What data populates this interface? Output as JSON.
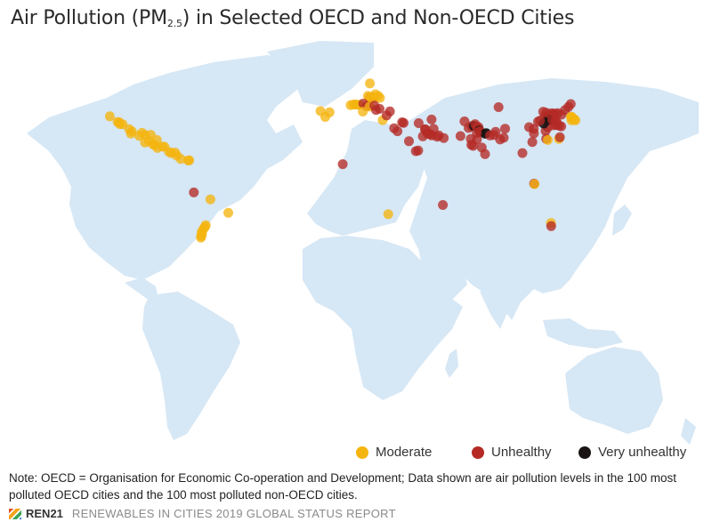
{
  "title": {
    "prefix": "Air Pollution (PM",
    "subscript": "2.5",
    "suffix": ") in Selected OECD and Non-OECD Cities"
  },
  "colors": {
    "land": "#d6e7f5",
    "moderate": "#f5b50f",
    "unhealthy": "#b52a25",
    "very_unhealthy": "#1b1414"
  },
  "legend": [
    {
      "label": "Moderate",
      "category": "moderate"
    },
    {
      "label": "Unhealthy",
      "category": "unhealthy"
    },
    {
      "label": "Very unhealthy",
      "category": "very_unhealthy"
    }
  ],
  "note": "Note: OECD = Organisation for Economic Co-operation and Development; Data shown are air pollution levels in the 100 most polluted OECD cities and the 100 most polluted non-OECD cities.",
  "footer": {
    "logo": "REN21",
    "report": "RENEWABLES IN CITIES 2019 GLOBAL STATUS REPORT"
  },
  "cities": [
    {
      "lon": -122.4,
      "lat": 37.8,
      "c": "moderate"
    },
    {
      "lon": -118.2,
      "lat": 34.1,
      "c": "moderate"
    },
    {
      "lon": -117.3,
      "lat": 33.9,
      "c": "moderate"
    },
    {
      "lon": -116.9,
      "lat": 32.7,
      "c": "moderate"
    },
    {
      "lon": -115.5,
      "lat": 32.6,
      "c": "moderate"
    },
    {
      "lon": -112.0,
      "lat": 29.5,
      "c": "moderate"
    },
    {
      "lon": -110.5,
      "lat": 28.0,
      "c": "moderate"
    },
    {
      "lon": -111.0,
      "lat": 26.5,
      "c": "moderate"
    },
    {
      "lon": -106.5,
      "lat": 25.0,
      "c": "moderate"
    },
    {
      "lon": -105.0,
      "lat": 27.0,
      "c": "moderate"
    },
    {
      "lon": -103.3,
      "lat": 25.5,
      "c": "moderate"
    },
    {
      "lon": -103.4,
      "lat": 20.7,
      "c": "moderate"
    },
    {
      "lon": -101.2,
      "lat": 21.5,
      "c": "moderate"
    },
    {
      "lon": -100.3,
      "lat": 25.7,
      "c": "moderate"
    },
    {
      "lon": -99.1,
      "lat": 19.4,
      "c": "moderate"
    },
    {
      "lon": -98.2,
      "lat": 19.0,
      "c": "moderate"
    },
    {
      "lon": -97.0,
      "lat": 22.3,
      "c": "moderate"
    },
    {
      "lon": -96.7,
      "lat": 17.1,
      "c": "moderate"
    },
    {
      "lon": -94.0,
      "lat": 18.0,
      "c": "moderate"
    },
    {
      "lon": -92.9,
      "lat": 17.9,
      "c": "moderate"
    },
    {
      "lon": -90.5,
      "lat": 14.6,
      "c": "moderate"
    },
    {
      "lon": -89.2,
      "lat": 13.7,
      "c": "moderate"
    },
    {
      "lon": -87.2,
      "lat": 14.1,
      "c": "moderate"
    },
    {
      "lon": -86.2,
      "lat": 12.1,
      "c": "moderate"
    },
    {
      "lon": -84.1,
      "lat": 9.9,
      "c": "moderate"
    },
    {
      "lon": -80.0,
      "lat": 8.9,
      "c": "moderate"
    },
    {
      "lon": -79.5,
      "lat": 9.0,
      "c": "moderate"
    },
    {
      "lon": -77.0,
      "lat": -12.0,
      "c": "unhealthy"
    },
    {
      "lon": -68.1,
      "lat": -16.5,
      "c": "moderate"
    },
    {
      "lon": -58.4,
      "lat": -25.3,
      "c": "moderate"
    },
    {
      "lon": -70.6,
      "lat": -33.4,
      "c": "moderate"
    },
    {
      "lon": -71.0,
      "lat": -34.5,
      "c": "moderate"
    },
    {
      "lon": -71.6,
      "lat": -35.4,
      "c": "moderate"
    },
    {
      "lon": -72.7,
      "lat": -37.5,
      "c": "moderate"
    },
    {
      "lon": -72.6,
      "lat": -38.7,
      "c": "moderate"
    },
    {
      "lon": -73.0,
      "lat": -39.8,
      "c": "moderate"
    },
    {
      "lon": -72.9,
      "lat": -40.5,
      "c": "moderate"
    },
    {
      "lon": -73.2,
      "lat": -41.5,
      "c": "moderate"
    },
    {
      "lon": 18.1,
      "lat": 59.3,
      "c": "moderate"
    },
    {
      "lon": 18.0,
      "lat": 50.0,
      "c": "unhealthy"
    },
    {
      "lon": 19.0,
      "lat": 50.2,
      "c": "moderate"
    },
    {
      "lon": 18.7,
      "lat": 50.3,
      "c": "moderate"
    },
    {
      "lon": 19.9,
      "lat": 50.1,
      "c": "unhealthy"
    },
    {
      "lon": 20.6,
      "lat": 49.8,
      "c": "moderate"
    },
    {
      "lon": 18.3,
      "lat": 49.4,
      "c": "moderate"
    },
    {
      "lon": 21.0,
      "lat": 52.2,
      "c": "moderate"
    },
    {
      "lon": 22.5,
      "lat": 51.2,
      "c": "moderate"
    },
    {
      "lon": 17.0,
      "lat": 51.1,
      "c": "moderate"
    },
    {
      "lon": 23.5,
      "lat": 49.8,
      "c": "moderate"
    },
    {
      "lon": 9.2,
      "lat": 45.5,
      "c": "moderate"
    },
    {
      "lon": 10.2,
      "lat": 45.5,
      "c": "moderate"
    },
    {
      "lon": 11.3,
      "lat": 45.4,
      "c": "moderate"
    },
    {
      "lon": 12.3,
      "lat": 45.4,
      "c": "moderate"
    },
    {
      "lon": 7.7,
      "lat": 45.1,
      "c": "moderate"
    },
    {
      "lon": 14.5,
      "lat": 46.1,
      "c": "unhealthy"
    },
    {
      "lon": 16.4,
      "lat": 44.5,
      "c": "unhealthy"
    },
    {
      "lon": 17.9,
      "lat": 44.2,
      "c": "moderate"
    },
    {
      "lon": 20.5,
      "lat": 44.8,
      "c": "unhealthy"
    },
    {
      "lon": 21.4,
      "lat": 42.0,
      "c": "unhealthy"
    },
    {
      "lon": 23.3,
      "lat": 42.7,
      "c": "unhealthy"
    },
    {
      "lon": 28.9,
      "lat": 41.0,
      "c": "unhealthy"
    },
    {
      "lon": 14.3,
      "lat": 40.9,
      "c": "moderate"
    },
    {
      "lon": -3.7,
      "lat": 40.4,
      "c": "moderate"
    },
    {
      "lon": -6.0,
      "lat": 37.4,
      "c": "moderate"
    },
    {
      "lon": -8.6,
      "lat": 41.2,
      "c": "moderate"
    },
    {
      "lon": 25.0,
      "lat": 35.3,
      "c": "moderate"
    },
    {
      "lon": 27.1,
      "lat": 38.4,
      "c": "unhealthy"
    },
    {
      "lon": 31.2,
      "lat": 30.0,
      "c": "unhealthy"
    },
    {
      "lon": 33.0,
      "lat": 28.0,
      "c": "unhealthy"
    },
    {
      "lon": 35.5,
      "lat": 33.9,
      "c": "unhealthy"
    },
    {
      "lon": 36.3,
      "lat": 33.5,
      "c": "unhealthy"
    },
    {
      "lon": 39.2,
      "lat": 21.5,
      "c": "unhealthy"
    },
    {
      "lon": 44.4,
      "lat": 33.3,
      "c": "unhealthy"
    },
    {
      "lon": 46.7,
      "lat": 24.7,
      "c": "unhealthy"
    },
    {
      "lon": 47.9,
      "lat": 29.4,
      "c": "unhealthy"
    },
    {
      "lon": 49.2,
      "lat": 26.4,
      "c": "unhealthy"
    },
    {
      "lon": 50.6,
      "lat": 26.2,
      "c": "unhealthy"
    },
    {
      "lon": 51.4,
      "lat": 35.7,
      "c": "unhealthy"
    },
    {
      "lon": 51.5,
      "lat": 25.3,
      "c": "unhealthy"
    },
    {
      "lon": 54.4,
      "lat": 24.5,
      "c": "unhealthy"
    },
    {
      "lon": 55.3,
      "lat": 25.3,
      "c": "unhealthy"
    },
    {
      "lon": 52.5,
      "lat": 29.6,
      "c": "unhealthy"
    },
    {
      "lon": 58.0,
      "lat": 23.6,
      "c": "unhealthy"
    },
    {
      "lon": 44.2,
      "lat": 15.4,
      "c": "unhealthy"
    },
    {
      "lon": 42.9,
      "lat": 15.0,
      "c": "unhealthy"
    },
    {
      "lon": 48.0,
      "lat": 29.0,
      "c": "unhealthy"
    },
    {
      "lon": 67.0,
      "lat": 24.9,
      "c": "unhealthy"
    },
    {
      "lon": 69.2,
      "lat": 34.5,
      "c": "unhealthy"
    },
    {
      "lon": 71.4,
      "lat": 30.2,
      "c": "unhealthy"
    },
    {
      "lon": 73.0,
      "lat": 31.4,
      "c": "unhealthy"
    },
    {
      "lon": 74.3,
      "lat": 31.5,
      "c": "very_unhealthy"
    },
    {
      "lon": 74.9,
      "lat": 32.7,
      "c": "unhealthy"
    },
    {
      "lon": 75.8,
      "lat": 30.9,
      "c": "unhealthy"
    },
    {
      "lon": 76.8,
      "lat": 30.7,
      "c": "unhealthy"
    },
    {
      "lon": 77.2,
      "lat": 28.6,
      "c": "very_unhealthy"
    },
    {
      "lon": 77.4,
      "lat": 28.2,
      "c": "unhealthy"
    },
    {
      "lon": 78.0,
      "lat": 27.2,
      "c": "unhealthy"
    },
    {
      "lon": 80.3,
      "lat": 26.4,
      "c": "very_unhealthy"
    },
    {
      "lon": 80.9,
      "lat": 26.8,
      "c": "very_unhealthy"
    },
    {
      "lon": 83.0,
      "lat": 25.3,
      "c": "unhealthy"
    },
    {
      "lon": 85.1,
      "lat": 25.6,
      "c": "unhealthy"
    },
    {
      "lon": 88.4,
      "lat": 22.6,
      "c": "unhealthy"
    },
    {
      "lon": 90.4,
      "lat": 23.8,
      "c": "unhealthy"
    },
    {
      "lon": 72.9,
      "lat": 19.1,
      "c": "unhealthy"
    },
    {
      "lon": 73.9,
      "lat": 18.5,
      "c": "unhealthy"
    },
    {
      "lon": 75.9,
      "lat": 22.7,
      "c": "unhealthy"
    },
    {
      "lon": 75.8,
      "lat": 26.9,
      "c": "unhealthy"
    },
    {
      "lon": 72.6,
      "lat": 23.0,
      "c": "unhealthy"
    },
    {
      "lon": 80.3,
      "lat": 13.1,
      "c": "unhealthy"
    },
    {
      "lon": 78.5,
      "lat": 17.4,
      "c": "unhealthy"
    },
    {
      "lon": 86.0,
      "lat": 27.7,
      "c": "unhealthy"
    },
    {
      "lon": 87.6,
      "lat": 43.8,
      "c": "unhealthy"
    },
    {
      "lon": 91.1,
      "lat": 29.7,
      "c": "unhealthy"
    },
    {
      "lon": 106.6,
      "lat": 29.6,
      "c": "unhealthy"
    },
    {
      "lon": 104.1,
      "lat": 30.7,
      "c": "unhealthy"
    },
    {
      "lon": 108.9,
      "lat": 34.3,
      "c": "unhealthy"
    },
    {
      "lon": 112.5,
      "lat": 37.9,
      "c": "unhealthy"
    },
    {
      "lon": 113.6,
      "lat": 34.8,
      "c": "very_unhealthy"
    },
    {
      "lon": 114.5,
      "lat": 38.0,
      "c": "very_unhealthy"
    },
    {
      "lon": 115.5,
      "lat": 38.9,
      "c": "unhealthy"
    },
    {
      "lon": 116.4,
      "lat": 39.9,
      "c": "unhealthy"
    },
    {
      "lon": 117.2,
      "lat": 39.1,
      "c": "unhealthy"
    },
    {
      "lon": 117.0,
      "lat": 36.7,
      "c": "unhealthy"
    },
    {
      "lon": 118.8,
      "lat": 32.1,
      "c": "unhealthy"
    },
    {
      "lon": 117.3,
      "lat": 31.9,
      "c": "unhealthy"
    },
    {
      "lon": 114.3,
      "lat": 30.6,
      "c": "unhealthy"
    },
    {
      "lon": 113.0,
      "lat": 28.2,
      "c": "unhealthy"
    },
    {
      "lon": 112.0,
      "lat": 33.0,
      "c": "very_unhealthy"
    },
    {
      "lon": 115.0,
      "lat": 35.7,
      "c": "very_unhealthy"
    },
    {
      "lon": 116.6,
      "lat": 35.5,
      "c": "unhealthy"
    },
    {
      "lon": 118.3,
      "lat": 35.0,
      "c": "unhealthy"
    },
    {
      "lon": 119.0,
      "lat": 34.0,
      "c": "unhealthy"
    },
    {
      "lon": 120.3,
      "lat": 31.6,
      "c": "unhealthy"
    },
    {
      "lon": 121.5,
      "lat": 31.2,
      "c": "unhealthy"
    },
    {
      "lon": 123.4,
      "lat": 41.8,
      "c": "unhealthy"
    },
    {
      "lon": 125.3,
      "lat": 43.9,
      "c": "unhealthy"
    },
    {
      "lon": 126.6,
      "lat": 45.8,
      "c": "unhealthy"
    },
    {
      "lon": 121.6,
      "lat": 38.9,
      "c": "unhealthy"
    },
    {
      "lon": 119.6,
      "lat": 39.9,
      "c": "unhealthy"
    },
    {
      "lon": 118.2,
      "lat": 39.6,
      "c": "unhealthy"
    },
    {
      "lon": 111.7,
      "lat": 40.8,
      "c": "unhealthy"
    },
    {
      "lon": 113.3,
      "lat": 40.1,
      "c": "unhealthy"
    },
    {
      "lon": 110.0,
      "lat": 35.0,
      "c": "unhealthy"
    },
    {
      "lon": 106.7,
      "lat": 26.6,
      "c": "unhealthy"
    },
    {
      "lon": 105.8,
      "lat": 21.0,
      "c": "unhealthy"
    },
    {
      "lon": 100.5,
      "lat": 13.8,
      "c": "unhealthy"
    },
    {
      "lon": 113.3,
      "lat": 23.1,
      "c": "unhealthy"
    },
    {
      "lon": 114.2,
      "lat": 22.3,
      "c": "moderate"
    },
    {
      "lon": 120.2,
      "lat": 23.0,
      "c": "moderate"
    },
    {
      "lon": 120.7,
      "lat": 24.1,
      "c": "unhealthy"
    },
    {
      "lon": 126.98,
      "lat": 37.57,
      "c": "moderate"
    },
    {
      "lon": 127.4,
      "lat": 36.4,
      "c": "moderate"
    },
    {
      "lon": 128.6,
      "lat": 35.9,
      "c": "moderate"
    },
    {
      "lon": 129.1,
      "lat": 35.2,
      "c": "moderate"
    },
    {
      "lon": 126.7,
      "lat": 37.4,
      "c": "moderate"
    },
    {
      "lon": 127.0,
      "lat": 35.2,
      "c": "moderate"
    },
    {
      "lon": 127.3,
      "lat": 36.8,
      "c": "moderate"
    },
    {
      "lon": 3.4,
      "lat": 6.5,
      "c": "unhealthy"
    },
    {
      "lon": 28.0,
      "lat": -26.2,
      "c": "moderate"
    },
    {
      "lon": 57.5,
      "lat": -20.2,
      "c": "unhealthy"
    },
    {
      "lon": 106.8,
      "lat": -6.2,
      "c": "unhealthy"
    },
    {
      "lon": 107.0,
      "lat": -6.5,
      "c": "moderate"
    },
    {
      "lon": 115.9,
      "lat": -31.9,
      "c": "moderate"
    },
    {
      "lon": 116.0,
      "lat": -34.0,
      "c": "unhealthy"
    }
  ]
}
